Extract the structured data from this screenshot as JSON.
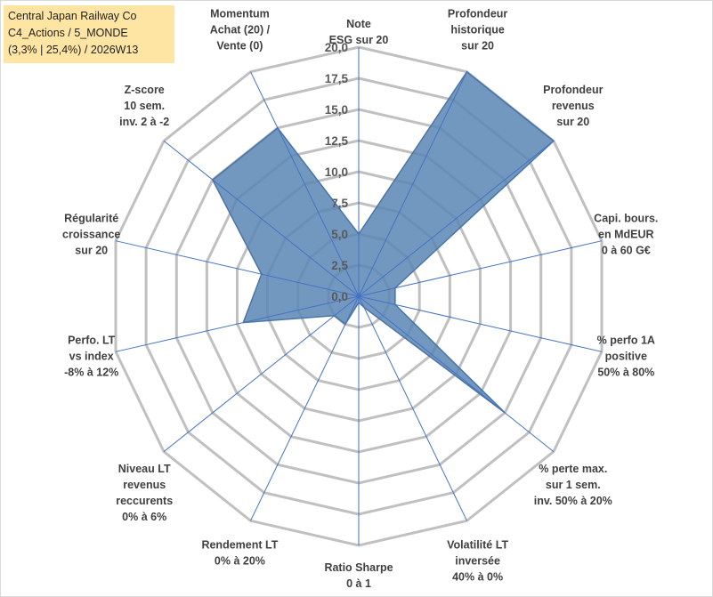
{
  "title_box": {
    "line1": "Central Japan Railway Co",
    "line2": "C4_Actions / 5_MONDE",
    "line3": "(3,3% | 25,4%) / 2026W13"
  },
  "chart_data": {
    "type": "radar",
    "axes": [
      [
        "Note",
        "ESG sur 20"
      ],
      [
        "Profondeur",
        "historique",
        "sur 20"
      ],
      [
        "Profondeur",
        "revenus",
        "sur 20"
      ],
      [
        "Capi. bours.",
        "en MdEUR",
        "0 à 60 G€"
      ],
      [
        "% perfo 1A",
        "positive",
        "50% à 80%"
      ],
      [
        "% perte max.",
        "sur 1 sem.",
        "inv. 50% à 20%"
      ],
      [
        "Volatilité LT",
        "inversée",
        "40% à 0%"
      ],
      [
        "Ratio Sharpe",
        "0 à 1"
      ],
      [
        "Rendement LT",
        "0% à 20%"
      ],
      [
        "Niveau LT",
        "revenus",
        "reccurents",
        "0% à 6%"
      ],
      [
        "Perfo. LT",
        "vs index",
        "-8% à 12%"
      ],
      [
        "Régularité",
        "croissance",
        "sur 20"
      ],
      [
        "Z-score",
        "10 sem.",
        "inv. 2 à -2"
      ],
      [
        "Momentum",
        "Achat (20) /",
        "Vente (0)"
      ]
    ],
    "values": [
      5.0,
      20.0,
      20.0,
      3.0,
      3.0,
      15.0,
      1.0,
      0.5,
      2.5,
      2.5,
      9.5,
      8.0,
      15.0,
      15.0
    ],
    "rmin": 0,
    "rmax": 20,
    "ticks": [
      "0,0",
      "2,5",
      "5,0",
      "7,5",
      "10,0",
      "12,5",
      "15,0",
      "17,5",
      "20,0"
    ],
    "grid": true,
    "colors": {
      "fill": "#5b86b5",
      "grid": "#c0c0c0",
      "spoke": "#4472c4"
    }
  }
}
